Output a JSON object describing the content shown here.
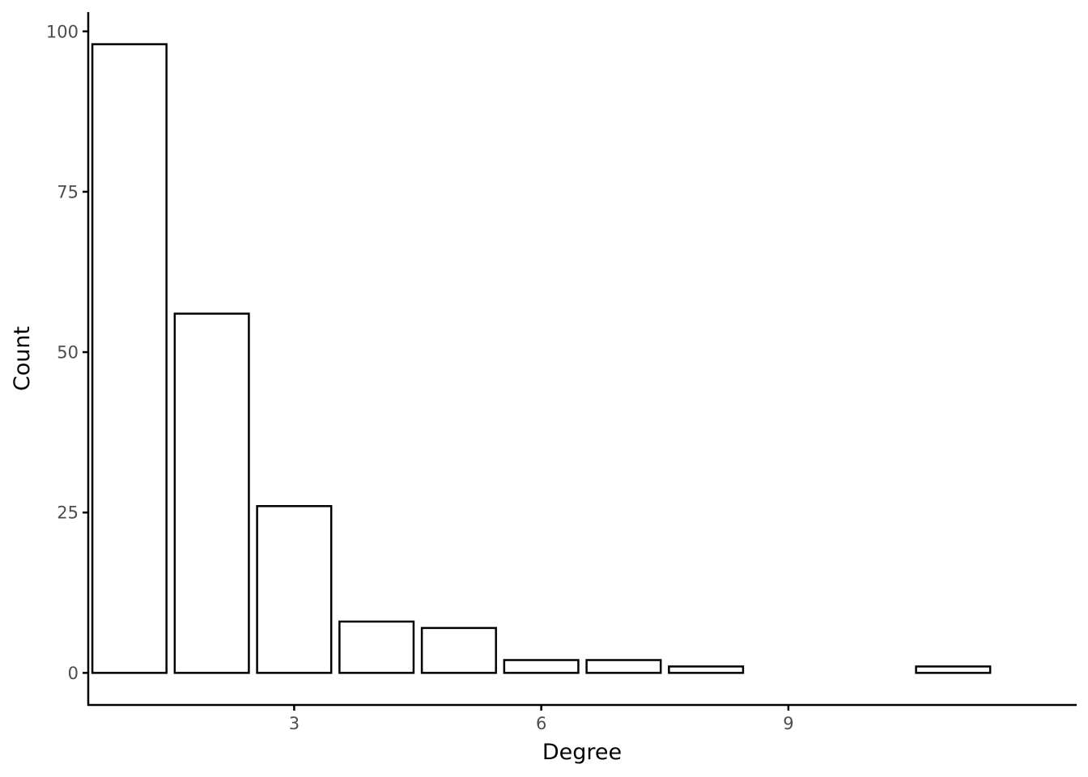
{
  "chart_data": {
    "type": "bar",
    "title": "",
    "xlabel": "Degree",
    "ylabel": "Count",
    "x": [
      1,
      2,
      3,
      4,
      5,
      6,
      7,
      8,
      11
    ],
    "values": [
      98,
      56,
      26,
      8,
      7,
      2,
      2,
      1,
      1
    ],
    "xlim": [
      0.5,
      12.5
    ],
    "ylim": [
      -5,
      103
    ],
    "x_ticks": [
      3,
      6,
      9
    ],
    "y_ticks": [
      0,
      25,
      50,
      75,
      100
    ],
    "grid": false,
    "legend": "none",
    "bar_fill": "#ffffff",
    "bar_stroke": "#000000"
  }
}
